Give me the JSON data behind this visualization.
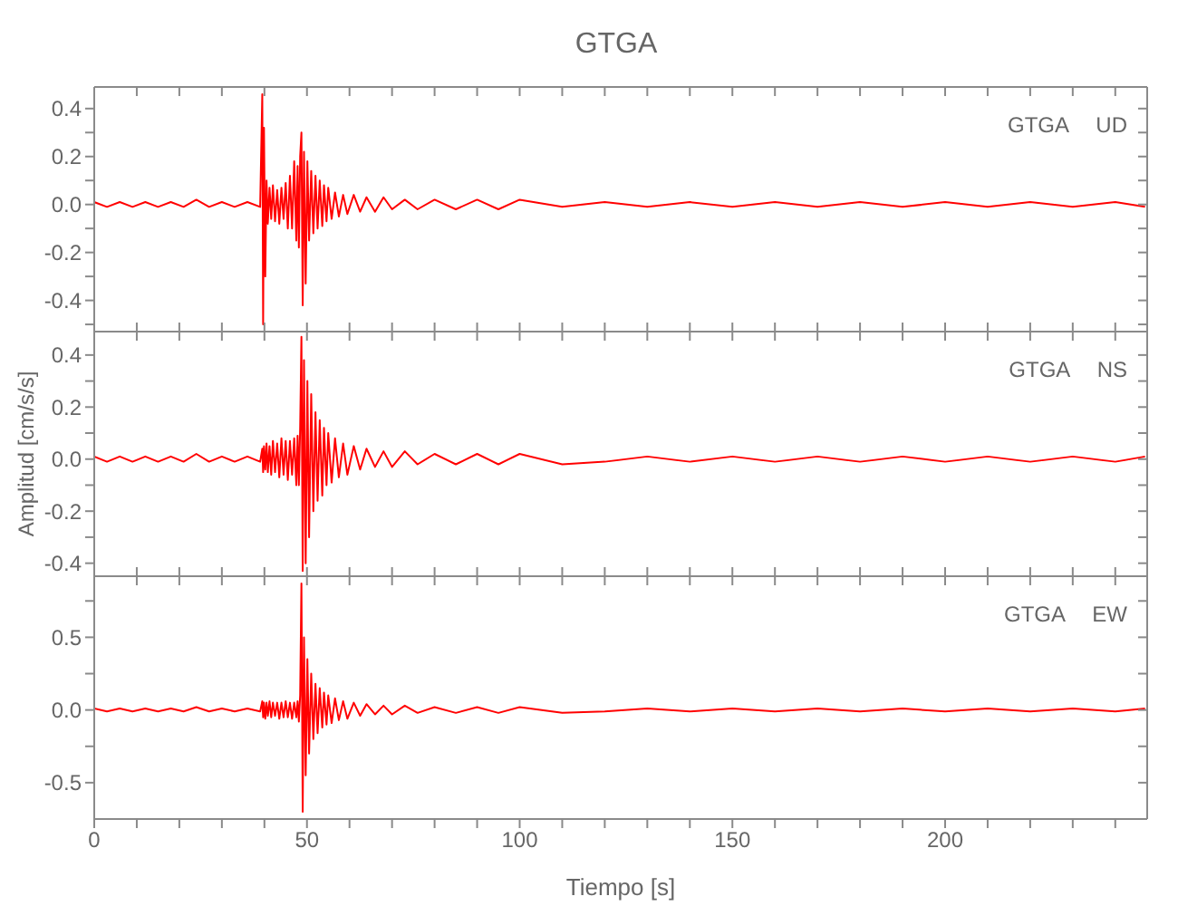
{
  "chart_data": [
    {
      "type": "line",
      "title": "GTGA",
      "annotations": [
        "GTGA UD"
      ],
      "tick_labels": "y",
      "xlim": [
        0,
        247.5
      ],
      "xticks": [
        {
          "value": 0,
          "label": null
        },
        {
          "value": 10,
          "label": null
        },
        {
          "value": 20,
          "label": null
        },
        {
          "value": 30,
          "label": null
        },
        {
          "value": 40,
          "label": null
        },
        {
          "value": 50,
          "label": null
        },
        {
          "value": 60,
          "label": null
        },
        {
          "value": 70,
          "label": null
        },
        {
          "value": 80,
          "label": null
        },
        {
          "value": 90,
          "label": null
        },
        {
          "value": 100,
          "label": null
        },
        {
          "value": 110,
          "label": null
        },
        {
          "value": 120,
          "label": null
        },
        {
          "value": 130,
          "label": null
        },
        {
          "value": 140,
          "label": null
        },
        {
          "value": 150,
          "label": null
        },
        {
          "value": 160,
          "label": null
        },
        {
          "value": 170,
          "label": null
        },
        {
          "value": 180,
          "label": null
        },
        {
          "value": 190,
          "label": null
        },
        {
          "value": 200,
          "label": null
        },
        {
          "value": 210,
          "label": null
        },
        {
          "value": 220,
          "label": null
        },
        {
          "value": 230,
          "label": null
        },
        {
          "value": 240,
          "label": null
        }
      ],
      "ylim": [
        -0.53,
        0.49
      ],
      "yticks": [
        {
          "value": -0.5,
          "label": null
        },
        {
          "value": -0.4,
          "label": "-0.4"
        },
        {
          "value": -0.3,
          "label": null
        },
        {
          "value": -0.2,
          "label": "-0.2"
        },
        {
          "value": -0.1,
          "label": null
        },
        {
          "value": 0,
          "label": "0.0"
        },
        {
          "value": 0.1,
          "label": null
        },
        {
          "value": 0.2,
          "label": "0.2"
        },
        {
          "value": 0.3,
          "label": null
        },
        {
          "value": 0.4,
          "label": "0.4"
        }
      ],
      "series": [
        {
          "color": "#ff0000",
          "x": [
            0,
            3,
            6,
            9,
            12,
            15,
            18,
            21,
            24,
            27,
            30,
            33,
            36,
            39,
            39.5,
            39.7,
            39.9,
            40.2,
            40.5,
            40.8,
            41.2,
            41.6,
            42,
            42.5,
            43,
            43.5,
            44,
            44.5,
            45,
            45.5,
            46,
            46.5,
            47,
            47.5,
            47.8,
            48.1,
            48.4,
            48.7,
            49,
            49.3,
            49.7,
            50.1,
            50.5,
            51,
            51.5,
            52,
            52.5,
            53,
            53.6,
            54,
            54.6,
            55,
            55.8,
            56.6,
            57.5,
            58.5,
            59.5,
            61,
            62.5,
            64,
            66,
            68,
            70,
            73,
            76,
            80,
            85,
            90,
            95,
            100,
            110,
            120,
            130,
            140,
            150,
            160,
            170,
            180,
            190,
            200,
            210,
            220,
            230,
            240,
            247
          ],
          "values": [
            0.01,
            -0.01,
            0.01,
            -0.01,
            0.01,
            -0.01,
            0.01,
            -0.01,
            0.02,
            -0.01,
            0.01,
            -0.01,
            0.01,
            -0.01,
            0.46,
            -0.5,
            0.32,
            -0.3,
            0.1,
            -0.08,
            0.07,
            -0.06,
            0.08,
            -0.07,
            0.06,
            -0.08,
            0.07,
            -0.06,
            0.09,
            -0.1,
            0.12,
            -0.1,
            0.18,
            -0.15,
            0.16,
            -0.18,
            0.2,
            0.3,
            -0.42,
            0.22,
            -0.33,
            0.18,
            -0.15,
            0.14,
            -0.12,
            0.12,
            -0.1,
            0.1,
            -0.09,
            0.08,
            -0.07,
            0.07,
            -0.06,
            0.05,
            -0.05,
            0.04,
            -0.04,
            0.04,
            -0.03,
            0.03,
            -0.03,
            0.03,
            -0.02,
            0.02,
            -0.02,
            0.02,
            -0.02,
            0.02,
            -0.02,
            0.02,
            -0.01,
            0.01,
            -0.01,
            0.01,
            -0.01,
            0.01,
            -0.01,
            0.01,
            -0.01,
            0.01,
            -0.01,
            0.01,
            -0.01,
            0.01,
            -0.01
          ]
        }
      ]
    },
    {
      "type": "line",
      "ylabel": "Amplitud [cm/s/s]",
      "annotations": [
        "GTGA NS"
      ],
      "tick_labels": "y",
      "xlim": [
        0,
        247.5
      ],
      "xticks": [
        {
          "value": 0,
          "label": null
        },
        {
          "value": 10,
          "label": null
        },
        {
          "value": 20,
          "label": null
        },
        {
          "value": 30,
          "label": null
        },
        {
          "value": 40,
          "label": null
        },
        {
          "value": 50,
          "label": null
        },
        {
          "value": 60,
          "label": null
        },
        {
          "value": 70,
          "label": null
        },
        {
          "value": 80,
          "label": null
        },
        {
          "value": 90,
          "label": null
        },
        {
          "value": 100,
          "label": null
        },
        {
          "value": 110,
          "label": null
        },
        {
          "value": 120,
          "label": null
        },
        {
          "value": 130,
          "label": null
        },
        {
          "value": 140,
          "label": null
        },
        {
          "value": 150,
          "label": null
        },
        {
          "value": 160,
          "label": null
        },
        {
          "value": 170,
          "label": null
        },
        {
          "value": 180,
          "label": null
        },
        {
          "value": 190,
          "label": null
        },
        {
          "value": 200,
          "label": null
        },
        {
          "value": 210,
          "label": null
        },
        {
          "value": 220,
          "label": null
        },
        {
          "value": 230,
          "label": null
        },
        {
          "value": 240,
          "label": null
        }
      ],
      "ylim": [
        -0.45,
        0.49
      ],
      "yticks": [
        {
          "value": -0.4,
          "label": "-0.4"
        },
        {
          "value": -0.3,
          "label": null
        },
        {
          "value": -0.2,
          "label": "-0.2"
        },
        {
          "value": -0.1,
          "label": null
        },
        {
          "value": 0,
          "label": "0.0"
        },
        {
          "value": 0.1,
          "label": null
        },
        {
          "value": 0.2,
          "label": "0.2"
        },
        {
          "value": 0.3,
          "label": null
        },
        {
          "value": 0.4,
          "label": "0.4"
        }
      ],
      "series": [
        {
          "color": "#ff0000",
          "x": [
            0,
            3,
            6,
            9,
            12,
            15,
            18,
            21,
            24,
            27,
            30,
            33,
            36,
            39,
            39.5,
            39.7,
            39.9,
            40.2,
            40.5,
            40.8,
            41.2,
            41.6,
            42,
            42.5,
            43,
            43.5,
            44,
            44.5,
            45,
            45.5,
            46,
            46.5,
            47,
            47.5,
            47.8,
            48.1,
            48.4,
            48.7,
            49,
            49.3,
            49.7,
            50.1,
            50.5,
            51,
            51.5,
            52,
            52.5,
            53,
            53.6,
            54,
            54.6,
            55,
            55.8,
            56.6,
            57.5,
            58.5,
            59.5,
            61,
            62.5,
            64,
            66,
            68,
            70,
            73,
            76,
            80,
            85,
            90,
            95,
            100,
            110,
            120,
            130,
            140,
            150,
            160,
            170,
            180,
            190,
            200,
            210,
            220,
            230,
            240,
            247
          ],
          "values": [
            0.01,
            -0.01,
            0.01,
            -0.01,
            0.01,
            -0.01,
            0.01,
            -0.01,
            0.02,
            -0.01,
            0.01,
            -0.01,
            0.01,
            -0.01,
            0.04,
            -0.05,
            0.05,
            -0.04,
            0.06,
            -0.05,
            0.05,
            -0.06,
            0.07,
            -0.05,
            0.06,
            -0.07,
            0.08,
            -0.06,
            0.07,
            -0.08,
            0.07,
            -0.06,
            0.08,
            -0.1,
            0.09,
            -0.1,
            0.12,
            0.47,
            -0.43,
            0.38,
            -0.4,
            0.3,
            -0.3,
            0.25,
            -0.2,
            0.18,
            -0.16,
            0.15,
            -0.14,
            0.12,
            -0.1,
            0.1,
            -0.09,
            0.08,
            -0.07,
            0.06,
            -0.06,
            0.05,
            -0.04,
            0.04,
            -0.03,
            0.03,
            -0.03,
            0.03,
            -0.02,
            0.02,
            -0.02,
            0.02,
            -0.02,
            0.02,
            -0.02,
            -0.01,
            0.01,
            -0.01,
            0.01,
            -0.01,
            0.01,
            -0.01,
            0.01,
            -0.01,
            0.01,
            -0.01,
            0.01,
            -0.01,
            0.01
          ]
        }
      ]
    },
    {
      "type": "line",
      "xlabel": "Tiempo [s]",
      "annotations": [
        "GTGA EW"
      ],
      "xlim": [
        0,
        247.5
      ],
      "xticks": [
        {
          "value": 0,
          "label": "0"
        },
        {
          "value": 10,
          "label": null
        },
        {
          "value": 20,
          "label": null
        },
        {
          "value": 30,
          "label": null
        },
        {
          "value": 40,
          "label": null
        },
        {
          "value": 50,
          "label": "50"
        },
        {
          "value": 60,
          "label": null
        },
        {
          "value": 70,
          "label": null
        },
        {
          "value": 80,
          "label": null
        },
        {
          "value": 90,
          "label": null
        },
        {
          "value": 100,
          "label": "100"
        },
        {
          "value": 110,
          "label": null
        },
        {
          "value": 120,
          "label": null
        },
        {
          "value": 130,
          "label": null
        },
        {
          "value": 140,
          "label": null
        },
        {
          "value": 150,
          "label": "150"
        },
        {
          "value": 160,
          "label": null
        },
        {
          "value": 170,
          "label": null
        },
        {
          "value": 180,
          "label": null
        },
        {
          "value": 190,
          "label": null
        },
        {
          "value": 200,
          "label": "200"
        },
        {
          "value": 210,
          "label": null
        },
        {
          "value": 220,
          "label": null
        },
        {
          "value": 230,
          "label": null
        },
        {
          "value": 240,
          "label": null
        }
      ],
      "ylim": [
        -0.75,
        0.92
      ],
      "yticks": [
        {
          "value": -0.5,
          "label": "-0.5"
        },
        {
          "value": -0.25,
          "label": null
        },
        {
          "value": 0,
          "label": "0.0"
        },
        {
          "value": 0.25,
          "label": null
        },
        {
          "value": 0.5,
          "label": "0.5"
        },
        {
          "value": 0.75,
          "label": null
        }
      ],
      "series": [
        {
          "color": "#ff0000",
          "x": [
            0,
            3,
            6,
            9,
            12,
            15,
            18,
            21,
            24,
            27,
            30,
            33,
            36,
            39,
            39.5,
            39.7,
            39.9,
            40.2,
            40.5,
            40.8,
            41.2,
            41.6,
            42,
            42.5,
            43,
            43.5,
            44,
            44.5,
            45,
            45.5,
            46,
            46.5,
            47,
            47.5,
            47.8,
            48.1,
            48.4,
            48.7,
            49,
            49.3,
            49.7,
            50.1,
            50.5,
            51,
            51.5,
            52,
            52.5,
            53,
            53.6,
            54,
            54.6,
            55,
            55.8,
            56.6,
            57.5,
            58.5,
            59.5,
            61,
            62.5,
            64,
            66,
            68,
            70,
            73,
            76,
            80,
            85,
            90,
            95,
            100,
            110,
            120,
            130,
            140,
            150,
            160,
            170,
            180,
            190,
            200,
            210,
            220,
            230,
            240,
            247
          ],
          "values": [
            0.01,
            -0.01,
            0.01,
            -0.01,
            0.01,
            -0.01,
            0.01,
            -0.01,
            0.02,
            -0.01,
            0.01,
            -0.01,
            0.01,
            -0.01,
            0.06,
            -0.05,
            0.05,
            -0.06,
            0.05,
            -0.04,
            0.06,
            -0.05,
            0.05,
            -0.04,
            0.05,
            -0.06,
            0.05,
            -0.05,
            0.06,
            -0.05,
            0.05,
            -0.06,
            0.05,
            -0.05,
            0.06,
            -0.08,
            0.1,
            0.87,
            -0.7,
            0.5,
            -0.45,
            0.35,
            -0.3,
            0.25,
            -0.2,
            0.18,
            -0.16,
            0.15,
            -0.12,
            0.12,
            -0.1,
            0.1,
            -0.09,
            0.08,
            -0.07,
            0.06,
            -0.06,
            0.05,
            -0.04,
            0.04,
            -0.03,
            0.03,
            -0.03,
            0.03,
            -0.02,
            0.02,
            -0.02,
            0.02,
            -0.02,
            0.02,
            -0.02,
            -0.01,
            0.01,
            -0.01,
            0.01,
            -0.01,
            0.01,
            -0.01,
            0.01,
            -0.01,
            0.01,
            -0.01,
            0.01,
            -0.01,
            0.01
          ]
        }
      ]
    }
  ]
}
